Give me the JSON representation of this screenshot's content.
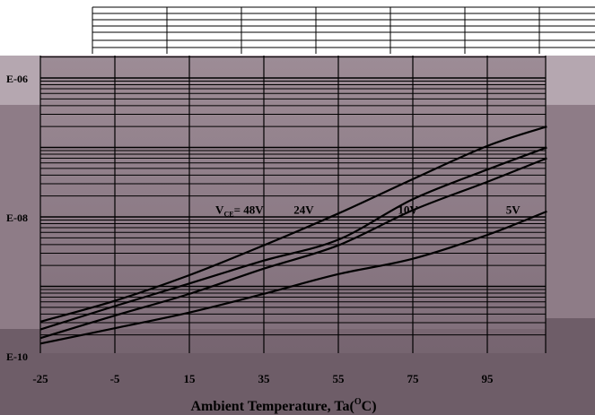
{
  "chart_data": {
    "type": "line",
    "title": "",
    "xlabel": "Ambient Temperature, Ta(",
    "xlabel_sup": "O",
    "xlabel_end": "C)",
    "ylabel": "",
    "x_ticks": [
      -25,
      -5,
      15,
      35,
      55,
      75,
      95
    ],
    "x_tick_labels": [
      "-25",
      "-5",
      "15",
      "35",
      "55",
      "75",
      "95"
    ],
    "xlim": [
      -25,
      112
    ],
    "y_scale": "log",
    "y_ticks": [
      1e-10,
      1e-08,
      1e-06
    ],
    "y_tick_labels": [
      "E-10",
      "E-08",
      "E-06"
    ],
    "ylim": [
      1e-10,
      2e-06
    ],
    "grid": true,
    "series": [
      {
        "name": "VCE= 48V",
        "label_main": "V",
        "label_sub": "CE",
        "label_tail": "= 48V",
        "label_x": 22,
        "label_y": 1.05e-08,
        "x": [
          -25,
          -5,
          15,
          35,
          55,
          75,
          95,
          111
        ],
        "y": [
          3.1e-10,
          6.2e-10,
          1.45e-09,
          3.9e-09,
          1.12e-08,
          3.5e-08,
          1.05e-07,
          2e-07
        ]
      },
      {
        "name": "24V",
        "label_main": "24V",
        "label_x": 43,
        "label_y": 1.05e-08,
        "x": [
          -25,
          -5,
          15,
          35,
          55,
          75,
          95,
          111
        ],
        "y": [
          2.4e-10,
          5.2e-10,
          1.1e-09,
          2.35e-09,
          4.7e-09,
          1.8e-08,
          4.8e-08,
          1e-07
        ]
      },
      {
        "name": "10V",
        "label_main": "10V",
        "label_x": 71,
        "label_y": 1.05e-08,
        "x": [
          -25,
          -5,
          15,
          35,
          55,
          75,
          95,
          111
        ],
        "y": [
          1.8e-10,
          3.8e-10,
          7.8e-10,
          1.8e-09,
          3.9e-09,
          1.25e-08,
          3.2e-08,
          7e-08
        ]
      },
      {
        "name": "5V",
        "label_main": "5V",
        "label_x": 100,
        "label_y": 1.05e-08,
        "x": [
          -25,
          -5,
          15,
          35,
          55,
          75,
          95,
          111
        ],
        "y": [
          1.5e-10,
          2.5e-10,
          4.2e-10,
          7.8e-10,
          1.5e-09,
          2.5e-09,
          5.5e-09,
          1.2e-08
        ]
      }
    ]
  },
  "colors": {
    "plot_top": "#9d8c96",
    "plot_bottom": "#7f6d79",
    "band_bottom": "#6c5c66",
    "frame_light": "#b5a7b0",
    "frame_mid": "#8e7c87",
    "frame_dark": "#6e5d68",
    "line": "#000000",
    "grid": "#000000"
  }
}
